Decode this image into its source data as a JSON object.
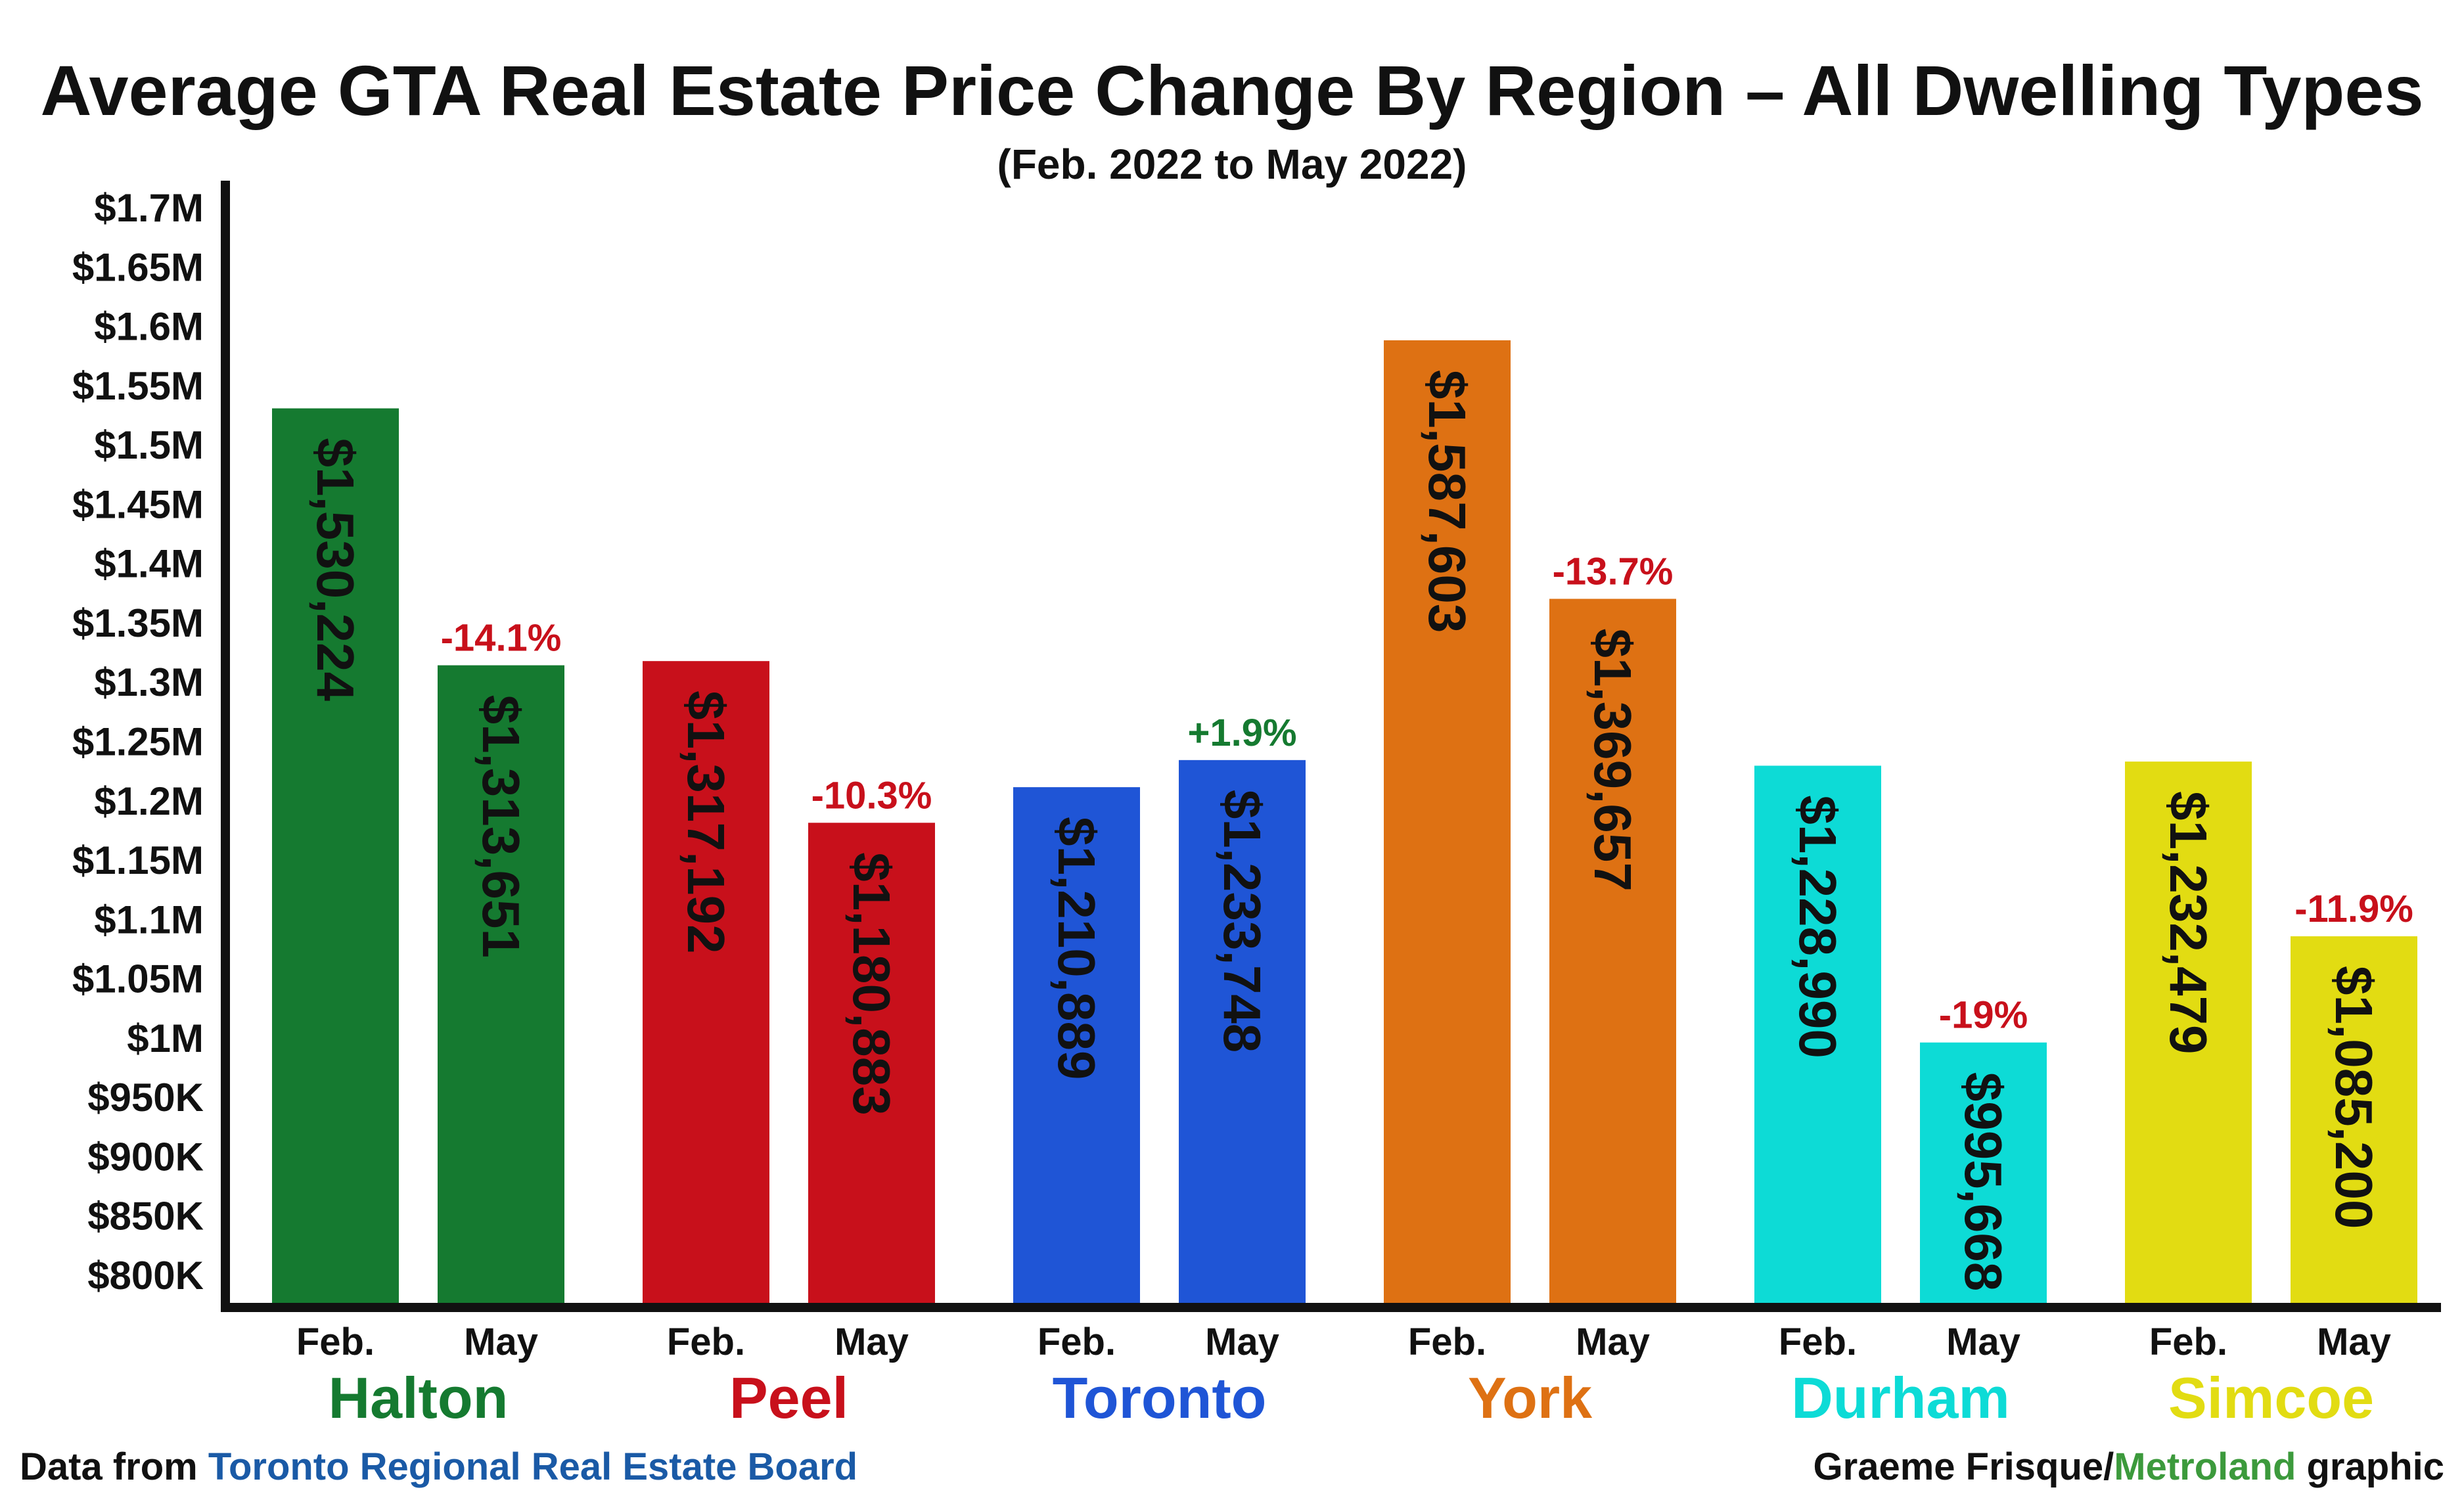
{
  "chart_data": {
    "type": "bar",
    "title": "Average GTA Real Estate Price Change By Region – All Dwelling Types",
    "subtitle": "(Feb. 2022 to May 2022)",
    "ylim": [
      800000,
      1700000
    ],
    "y_ticks": [
      {
        "value": 800000,
        "label": "$800K"
      },
      {
        "value": 850000,
        "label": "$850K"
      },
      {
        "value": 900000,
        "label": "$900K"
      },
      {
        "value": 950000,
        "label": "$950K"
      },
      {
        "value": 1000000,
        "label": "$1M"
      },
      {
        "value": 1050000,
        "label": "$1.05M"
      },
      {
        "value": 1100000,
        "label": "$1.1M"
      },
      {
        "value": 1150000,
        "label": "$1.15M"
      },
      {
        "value": 1200000,
        "label": "$1.2M"
      },
      {
        "value": 1250000,
        "label": "$1.25M"
      },
      {
        "value": 1300000,
        "label": "$1.3M"
      },
      {
        "value": 1350000,
        "label": "$1.35M"
      },
      {
        "value": 1400000,
        "label": "$1.4M"
      },
      {
        "value": 1450000,
        "label": "$1.45M"
      },
      {
        "value": 1500000,
        "label": "$1.5M"
      },
      {
        "value": 1550000,
        "label": "$1.55M"
      },
      {
        "value": 1600000,
        "label": "$1.6M"
      },
      {
        "value": 1650000,
        "label": "$1.65M"
      },
      {
        "value": 1700000,
        "label": "$1.7M"
      }
    ],
    "period_labels": [
      "Feb.",
      "May"
    ],
    "regions": [
      {
        "name": "Halton",
        "color": "#157a30",
        "feb": {
          "value": 1530224,
          "label": "$1,530,224"
        },
        "may": {
          "value": 1313651,
          "label": "$1,313,651"
        },
        "change": "-14.1%",
        "change_color": "#c8101b"
      },
      {
        "name": "Peel",
        "color": "#c8101b",
        "feb": {
          "value": 1317192,
          "label": "$1,317,192"
        },
        "may": {
          "value": 1180883,
          "label": "$1,180,883"
        },
        "change": "-10.3%",
        "change_color": "#c8101b"
      },
      {
        "name": "Toronto",
        "color": "#1f55d6",
        "feb": {
          "value": 1210889,
          "label": "$1,210,889"
        },
        "may": {
          "value": 1233748,
          "label": "$1,233,748"
        },
        "change": "+1.9%",
        "change_color": "#157a30"
      },
      {
        "name": "York",
        "color": "#de7113",
        "feb": {
          "value": 1587603,
          "label": "$1,587,603"
        },
        "may": {
          "value": 1369657,
          "label": "$1,369,657"
        },
        "change": "-13.7%",
        "change_color": "#c8101b"
      },
      {
        "name": "Durham",
        "color": "#0ddbd6",
        "feb": {
          "value": 1228990,
          "label": "$1,228,990"
        },
        "may": {
          "value": 995668,
          "label": "$995,668"
        },
        "change": "-19%",
        "change_color": "#c8101b"
      },
      {
        "name": "Simcoe",
        "color": "#e2dc12",
        "feb": {
          "value": 1232479,
          "label": "$1,232,479"
        },
        "may": {
          "value": 1085200,
          "label": "$1,085,200"
        },
        "change": "-11.9%",
        "change_color": "#c8101b"
      }
    ]
  },
  "credits": {
    "source_prefix": "Data from ",
    "source_name": "Toronto Regional Real Estate Board",
    "source_color": "#1a5aa6",
    "author_prefix": "Graeme Frisque/",
    "author_org": "Metroland",
    "author_org_color": "#3c9a3c",
    "author_suffix": " graphic"
  }
}
